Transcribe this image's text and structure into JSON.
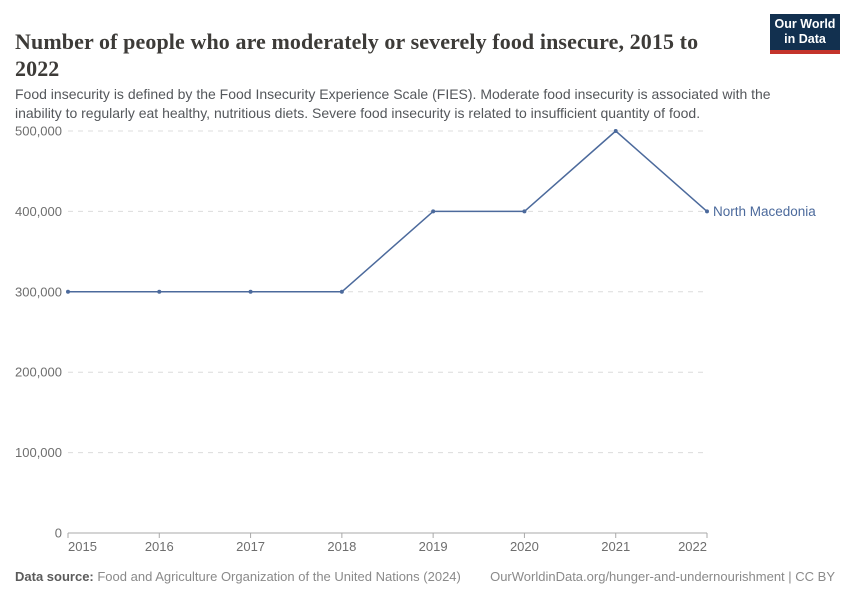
{
  "header": {
    "title": "Number of people who are moderately or severely food insecure, 2015 to 2022",
    "subtitle": "Food insecurity is defined by the Food Insecurity Experience Scale (FIES). Moderate food insecurity is associated with the inability to regularly eat healthy, nutritious diets. Severe food insecurity is related to insufficient quantity of food.",
    "logo": {
      "line1": "Our World",
      "line2": "in Data",
      "bg_color": "#12304F",
      "accent_color": "#C4342B"
    }
  },
  "chart_data": {
    "type": "line",
    "x": [
      2015,
      2016,
      2017,
      2018,
      2019,
      2020,
      2021,
      2022
    ],
    "x_tick_labels": [
      "2015",
      "2016",
      "2017",
      "2018",
      "2019",
      "2020",
      "2021",
      "2022"
    ],
    "series": [
      {
        "name": "North Macedonia",
        "color": "#4C6A9C",
        "values": [
          300000,
          300000,
          300000,
          300000,
          400000,
          400000,
          500000,
          400000
        ]
      }
    ],
    "ylim": [
      0,
      500000
    ],
    "y_ticks": [
      0,
      100000,
      200000,
      300000,
      400000,
      500000
    ],
    "y_tick_labels": [
      "0",
      "100,000",
      "200,000",
      "300,000",
      "400,000",
      "500,000"
    ],
    "grid": "horizontal-dashed",
    "legend": "series-end-label",
    "grid_color": "#dcdcdc",
    "axis_color": "#a9a9a9"
  },
  "footer": {
    "datasource_label": "Data source:",
    "datasource_value": " Food and Agriculture Organization of the United Nations (2024)",
    "credit": "OurWorldinData.org/hunger-and-undernourishment | CC BY"
  }
}
